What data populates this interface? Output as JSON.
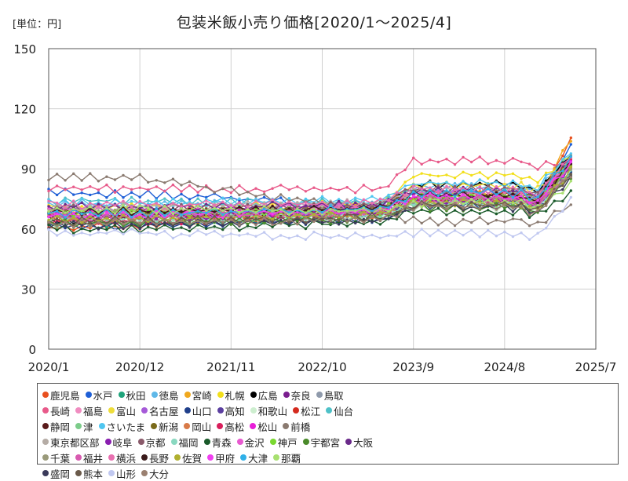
{
  "chart_data": {
    "type": "line",
    "title": "包装米飯小売り価格[2020/1～2025/4]",
    "unit_label": "[単位：円]",
    "xlabel": "",
    "ylabel": "",
    "ylim": [
      0,
      150
    ],
    "xlim": [
      0,
      66
    ],
    "y_ticks": [
      0,
      30,
      60,
      90,
      120,
      150
    ],
    "x_ticks": [
      {
        "label": "2020/1",
        "month_index": 0
      },
      {
        "label": "2020/12",
        "month_index": 11
      },
      {
        "label": "2021/11",
        "month_index": 22
      },
      {
        "label": "2022/10",
        "month_index": 33
      },
      {
        "label": "2023/9",
        "month_index": 44
      },
      {
        "label": "2024/8",
        "month_index": 55
      },
      {
        "label": "2025/7",
        "month_index": 66
      }
    ],
    "grid": true,
    "legend_position": "bottom",
    "series": [
      {
        "name": "鹿児島",
        "color": "#e8501f",
        "start": 62,
        "r23": 69,
        "mid": 75,
        "final": 106
      },
      {
        "name": "水戸",
        "color": "#1e5fd6",
        "start": 79,
        "r23": 72,
        "mid": 80,
        "final": 103
      },
      {
        "name": "秋田",
        "color": "#1ea37a",
        "start": 64,
        "r23": 68,
        "mid": 76,
        "final": 100
      },
      {
        "name": "徳島",
        "color": "#5fb8e8",
        "start": 73,
        "r23": 74,
        "mid": 82,
        "final": 98
      },
      {
        "name": "宮崎",
        "color": "#f0a81e",
        "start": 70,
        "r23": 72,
        "mid": 78,
        "final": 107
      },
      {
        "name": "札幌",
        "color": "#f2df1a",
        "start": 72,
        "r23": 73,
        "mid": 88,
        "final": 97
      },
      {
        "name": "広島",
        "color": "#000000",
        "start": 66,
        "r23": 72,
        "mid": 83,
        "final": 97
      },
      {
        "name": "奈良",
        "color": "#7a1e8e",
        "start": 68,
        "r23": 70,
        "mid": 76,
        "final": 93
      },
      {
        "name": "鳥取",
        "color": "#8f9aab",
        "start": 67,
        "r23": 69,
        "mid": 74,
        "final": 90
      },
      {
        "name": "長崎",
        "color": "#e85a8a",
        "start": 81,
        "r23": 81,
        "mid": 95,
        "final": 94
      },
      {
        "name": "福島",
        "color": "#f08cc0",
        "start": 70,
        "r23": 71,
        "mid": 77,
        "final": 92
      },
      {
        "name": "富山",
        "color": "#eedd3a",
        "start": 69,
        "r23": 71,
        "mid": 83,
        "final": 96
      },
      {
        "name": "名古屋",
        "color": "#a65ad8",
        "start": 71,
        "r23": 72,
        "mid": 79,
        "final": 95
      },
      {
        "name": "山口",
        "color": "#1f3f8a",
        "start": 63,
        "r23": 66,
        "mid": 73,
        "final": 89
      },
      {
        "name": "高知",
        "color": "#5b3fa0",
        "start": 68,
        "r23": 69,
        "mid": 75,
        "final": 91
      },
      {
        "name": "和歌山",
        "color": "#cdeecf",
        "start": 65,
        "r23": 67,
        "mid": 72,
        "final": 88
      },
      {
        "name": "松江",
        "color": "#d42a1e",
        "start": 67,
        "r23": 70,
        "mid": 78,
        "final": 94
      },
      {
        "name": "仙台",
        "color": "#4ec1c8",
        "start": 75,
        "r23": 74,
        "mid": 80,
        "final": 92
      },
      {
        "name": "静岡",
        "color": "#5a1a1a",
        "start": 68,
        "r23": 70,
        "mid": 77,
        "final": 96
      },
      {
        "name": "津",
        "color": "#7ccc8a",
        "start": 64,
        "r23": 67,
        "mid": 74,
        "final": 90
      },
      {
        "name": "さいたま",
        "color": "#4fc6f0",
        "start": 74,
        "r23": 76,
        "mid": 84,
        "final": 99
      },
      {
        "name": "新潟",
        "color": "#7a6a1a",
        "start": 70,
        "r23": 71,
        "mid": 79,
        "final": 95
      },
      {
        "name": "岡山",
        "color": "#d87a48",
        "start": 66,
        "r23": 68,
        "mid": 75,
        "final": 93
      },
      {
        "name": "高松",
        "color": "#d81e5b",
        "start": 65,
        "r23": 68,
        "mid": 76,
        "final": 92
      },
      {
        "name": "松山",
        "color": "#e81ed8",
        "start": 69,
        "r23": 70,
        "mid": 77,
        "final": 94
      },
      {
        "name": "前橋",
        "color": "#8a7a70",
        "start": 87,
        "r23": 70,
        "mid": 65,
        "final": 73
      },
      {
        "name": "東京都区部",
        "color": "#b5aca5",
        "start": 72,
        "r23": 74,
        "mid": 80,
        "final": 94
      },
      {
        "name": "岐阜",
        "color": "#8a1eb0",
        "start": 67,
        "r23": 69,
        "mid": 75,
        "final": 92
      },
      {
        "name": "京都",
        "color": "#8a5a6a",
        "start": 71,
        "r23": 73,
        "mid": 81,
        "final": 96
      },
      {
        "name": "福岡",
        "color": "#8ad8c0",
        "start": 66,
        "r23": 68,
        "mid": 74,
        "final": 90
      },
      {
        "name": "青森",
        "color": "#1a5a2a",
        "start": 61,
        "r23": 64,
        "mid": 70,
        "final": 78
      },
      {
        "name": "金沢",
        "color": "#e85ad0",
        "start": 70,
        "r23": 72,
        "mid": 79,
        "final": 95
      },
      {
        "name": "神戸",
        "color": "#7ad830",
        "start": 69,
        "r23": 70,
        "mid": 77,
        "final": 93
      },
      {
        "name": "宇都宮",
        "color": "#4a8a2a",
        "start": 64,
        "r23": 66,
        "mid": 72,
        "final": 88
      },
      {
        "name": "大阪",
        "color": "#6a2a8a",
        "start": 72,
        "r23": 73,
        "mid": 80,
        "final": 97
      },
      {
        "name": "千葉",
        "color": "#9a9a7a",
        "start": 68,
        "r23": 70,
        "mid": 76,
        "final": 91
      },
      {
        "name": "福井",
        "color": "#d85ab0",
        "start": 67,
        "r23": 69,
        "mid": 75,
        "final": 89
      },
      {
        "name": "横浜",
        "color": "#e870b0",
        "start": 73,
        "r23": 74,
        "mid": 81,
        "final": 97
      },
      {
        "name": "長野",
        "color": "#3a1a1a",
        "start": 70,
        "r23": 71,
        "mid": 78,
        "final": 94
      },
      {
        "name": "佐賀",
        "color": "#b0b030",
        "start": 66,
        "r23": 68,
        "mid": 74,
        "final": 90
      },
      {
        "name": "甲府",
        "color": "#f040f0",
        "start": 68,
        "r23": 70,
        "mid": 77,
        "final": 93
      },
      {
        "name": "大津",
        "color": "#30b0e8",
        "start": 69,
        "r23": 71,
        "mid": 79,
        "final": 96
      },
      {
        "name": "那覇",
        "color": "#a8e070",
        "start": 71,
        "r23": 70,
        "mid": 74,
        "final": 84
      },
      {
        "name": "盛岡",
        "color": "#3a3a5a",
        "start": 63,
        "r23": 65,
        "mid": 72,
        "final": 86
      },
      {
        "name": "熊本",
        "color": "#6a5a4a",
        "start": 65,
        "r23": 67,
        "mid": 73,
        "final": 87
      },
      {
        "name": "山形",
        "color": "#c0c8f0",
        "start": 59,
        "r23": 57,
        "mid": 59,
        "final": 75
      },
      {
        "name": "大分",
        "color": "#9a8070",
        "start": 64,
        "r23": 66,
        "mid": 72,
        "final": 88
      }
    ]
  }
}
